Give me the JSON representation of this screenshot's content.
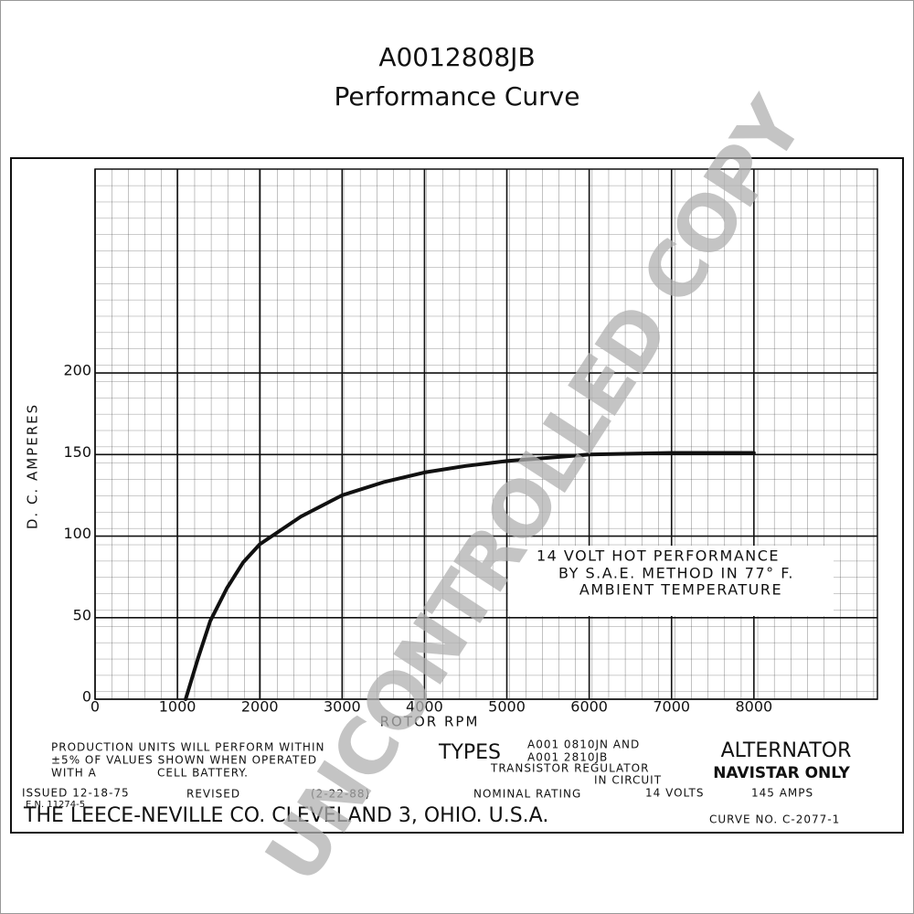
{
  "chart_data": {
    "type": "line",
    "title": "A0012808JB",
    "subtitle": "Performance Curve",
    "y_label": "D. C. AMPERES",
    "x_label": "ROTOR RPM",
    "x": [
      1100,
      1250,
      1400,
      1600,
      1800,
      2000,
      2500,
      3000,
      3500,
      4000,
      4500,
      5000,
      5500,
      6000,
      7000,
      8000
    ],
    "series": [
      {
        "name": "14 VOLT HOT PERFORMANCE",
        "color": "#111111",
        "values": [
          0,
          25,
          48,
          68,
          84,
          95,
          112,
          125,
          133,
          139,
          143,
          146,
          148,
          150,
          151,
          151
        ]
      }
    ],
    "xlim": [
      0,
      9500
    ],
    "ylim": [
      0,
      325
    ],
    "xticks": [
      0,
      1000,
      2000,
      3000,
      4000,
      5000,
      6000,
      7000,
      8000
    ],
    "yticks": [
      0,
      50,
      100,
      150,
      200
    ],
    "grid": true,
    "annotation": [
      "14 VOLT HOT PERFORMANCE",
      "BY S.A.E. METHOD IN 77° F.",
      "AMBIENT TEMPERATURE"
    ],
    "footer": {
      "note": [
        "PRODUCTION UNITS WILL PERFORM WITHIN",
        "±5% OF VALUES SHOWN WHEN OPERATED",
        "WITH A",
        "CELL BATTERY."
      ],
      "types_label": "TYPES",
      "types": [
        "A001 0810JN AND",
        "A001 2810JB"
      ],
      "regulator": [
        "TRANSISTOR REGULATOR",
        "IN CIRCUIT"
      ],
      "product": [
        "ALTERNATOR",
        "NAVISTAR ONLY"
      ],
      "issued": "ISSUED 12-18-75",
      "en": "E.N. 11274-5",
      "revised": "REVISED",
      "revised_date": "(2-22-88)",
      "rating_label": "NOMINAL RATING",
      "volts": "14 VOLTS",
      "amps": "145 AMPS",
      "company": "THE LEECE-NEVILLE CO. CLEVELAND 3, OHIO. U.S.A.",
      "curve_no": "CURVE NO. C-2077-1"
    },
    "watermark": "UNCONTROLLED COPY"
  }
}
